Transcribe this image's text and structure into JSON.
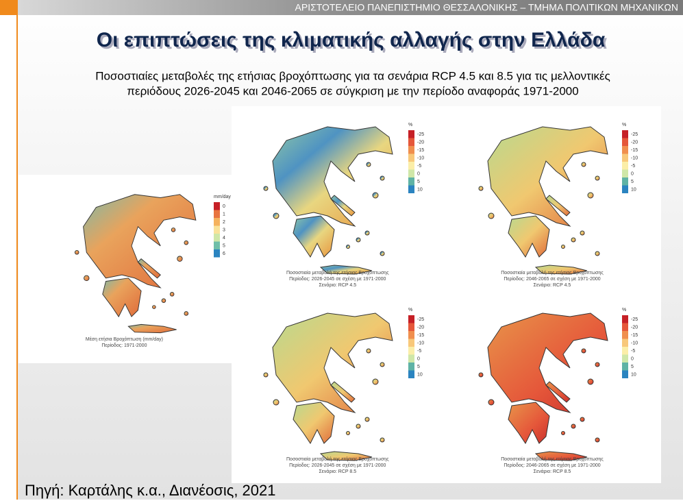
{
  "header": {
    "title": "ΑΡΙΣΤΟΤΕΛΕΙΟ ΠΑΝΕΠΙΣΤΗΜΙΟ ΘΕΣΣΑΛΟΝΙΚΗΣ – ΤΜΗΜΑ ΠΟΛΙΤΙΚΩΝ ΜΗΧΑΝΙΚΩΝ"
  },
  "slide": {
    "title": "Οι επιπτώσεις της κλιματικής αλλαγής στην Ελλάδα",
    "subtitle": [
      "Ποσοστιαίες μεταβολές της ετήσιας βροχόπτωσης για τα σενάρια RCP 4.5 και 8.5 για τις μελλοντικές",
      "περιόδους 2026-2045 και 2046-2065 σε σύγκριση με την περίοδο αναφοράς 1971-2000"
    ],
    "source": "Πηγή: Καρτάλης κ.α., Διανέοσις, 2021"
  },
  "maps": [
    {
      "legend_title": "mm/day",
      "legend_ticks": [
        "0",
        "1",
        "2",
        "3",
        "4",
        "5",
        "6"
      ],
      "caption": [
        "Μέση ετήσια Βροχόπτωση (mm/day)",
        "Περίοδος: 1971-2000"
      ]
    },
    {
      "legend_title": "%",
      "legend_ticks": [
        "-25",
        "-20",
        "-15",
        "-10",
        "-5",
        "0",
        "5",
        "10"
      ],
      "caption": [
        "Ποσοστιαία μεταβολή της ετήσιας Βροχόπτωσης",
        "Περίοδος: 2026-2045 σε σχέση με 1971-2000",
        "Σενάριο: RCP 4.5"
      ]
    },
    {
      "legend_title": "%",
      "legend_ticks": [
        "-25",
        "-20",
        "-15",
        "-10",
        "-5",
        "0",
        "5",
        "10"
      ],
      "caption": [
        "Ποσοστιαία μεταβολή της ετήσιας Βροχόπτωσης",
        "Περίοδος: 2046-2065 σε σχέση με 1971-2000",
        "Σενάριο: RCP 4.5"
      ]
    },
    {
      "legend_title": "%",
      "legend_ticks": [
        "-25",
        "-20",
        "-15",
        "-10",
        "-5",
        "0",
        "5",
        "10"
      ],
      "caption": [
        "Ποσοστιαία μεταβολή της ετήσιας Βροχόπτωσης",
        "Περίοδος: 2026-2045 σε σχέση με 1971-2000",
        "Σενάριο: RCP 8.5"
      ]
    },
    {
      "legend_title": "%",
      "legend_ticks": [
        "-25",
        "-20",
        "-15",
        "-10",
        "-5",
        "0",
        "5",
        "10"
      ],
      "caption": [
        "Ποσοστιαία μεταβολή της ετήσιας Βροχόπτωσης",
        "Περίοδος: 2046-2065 σε σχέση με 1971-2000",
        "Σενάριο: RCP 8.5"
      ]
    }
  ]
}
